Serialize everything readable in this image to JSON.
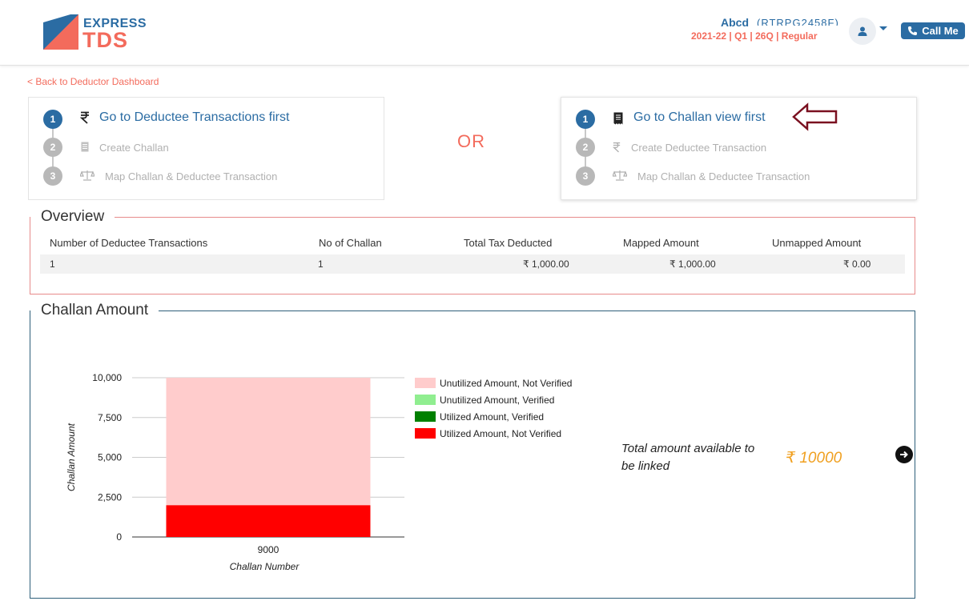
{
  "header": {
    "brand_top": "EXPRESS",
    "brand_bottom": "TDS",
    "user_name": "Abcd",
    "user_pan": "(RTRPG2458F)",
    "period": "2021-22  | Q1  | 26Q | Regular",
    "call_label": "Call Me",
    "colors": {
      "primary": "#2b6ca3",
      "accent": "#f36b5c"
    }
  },
  "back_link": "< Back to Deductor Dashboard",
  "left_steps": [
    {
      "num": "1",
      "label": "Go to Deductee Transactions first",
      "icon": "rupee-icon"
    },
    {
      "num": "2",
      "label": "Create Challan",
      "icon": "document-icon"
    },
    {
      "num": "3",
      "label": "Map Challan & Deductee Transaction",
      "icon": "scale-icon"
    }
  ],
  "or_text": "OR",
  "right_steps": [
    {
      "num": "1",
      "label": "Go to Challan view first",
      "icon": "receipt-icon"
    },
    {
      "num": "2",
      "label": "Create Deductee Transaction",
      "icon": "rupee-icon"
    },
    {
      "num": "3",
      "label": "Map Challan & Deductee Transaction",
      "icon": "scale-icon"
    }
  ],
  "overview": {
    "title": "Overview",
    "headers": [
      "Number of Deductee Transactions",
      "No of Challan",
      "Total Tax Deducted",
      "Mapped Amount",
      "Unmapped Amount"
    ],
    "row": [
      "1",
      "1",
      "₹ 1,000.00",
      "₹ 1,000.00",
      "₹ 0.00"
    ]
  },
  "challan": {
    "title": "Challan Amount",
    "total_label": "Total amount available to be linked",
    "total_amount": "₹ 10000"
  },
  "chart_data": {
    "type": "bar",
    "stacked": true,
    "categories": [
      "9000"
    ],
    "xlabel": "Challan Number",
    "ylabel": "Challan Amount",
    "ylim": [
      0,
      10000
    ],
    "yticks": [
      "0",
      "2,500",
      "5,000",
      "7,500",
      "10,000"
    ],
    "ytick_values": [
      0,
      2500,
      5000,
      7500,
      10000
    ],
    "legend_position": "right",
    "series": [
      {
        "name": "Unutilized Amount, Not Verified",
        "color": "#ffcccc",
        "values": [
          8000
        ]
      },
      {
        "name": "Unutilized Amount, Verified",
        "color": "#90ee90",
        "values": [
          0
        ]
      },
      {
        "name": "Utilized Amount, Verified",
        "color": "#008000",
        "values": [
          0
        ]
      },
      {
        "name": "Utilized Amount, Not Verified",
        "color": "#ff0000",
        "values": [
          2000
        ]
      }
    ]
  }
}
